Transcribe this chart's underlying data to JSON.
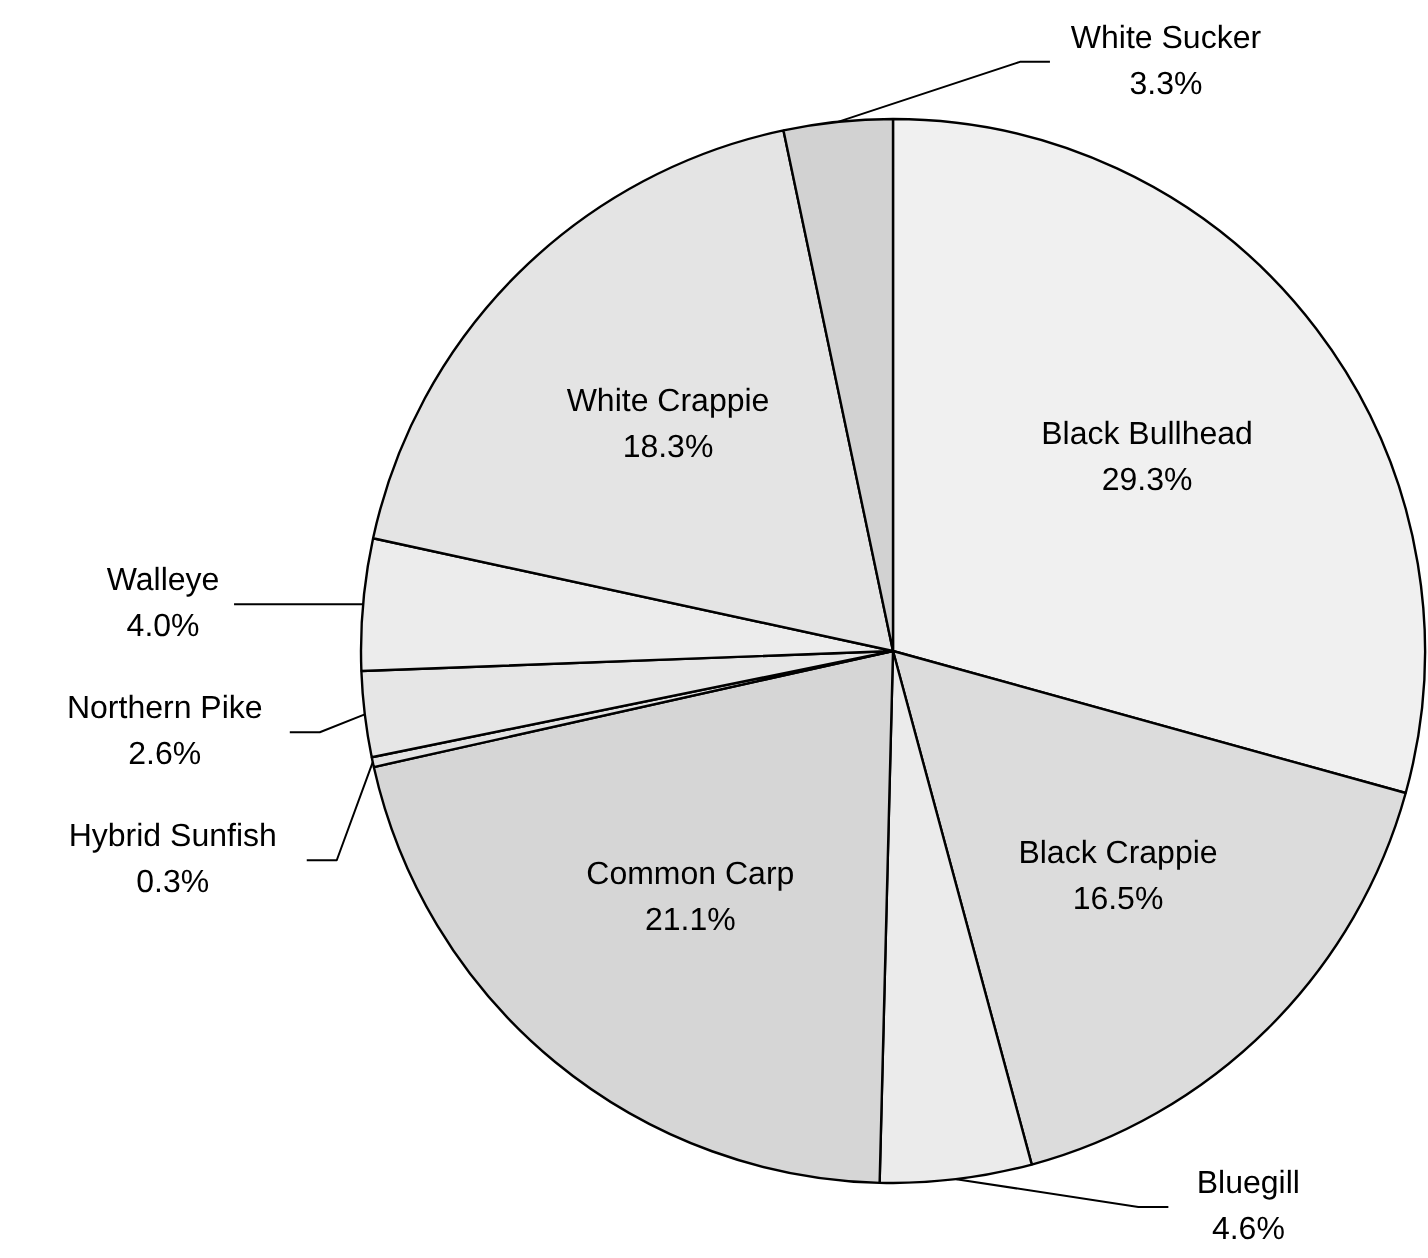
{
  "chart_data": {
    "type": "pie",
    "categories": [
      "Black Bullhead",
      "Black Crappie",
      "Bluegill",
      "Common Carp",
      "Hybrid Sunfish",
      "Northern Pike",
      "Walleye",
      "White Crappie",
      "White Sucker"
    ],
    "values": [
      29.3,
      16.5,
      4.6,
      21.1,
      0.3,
      2.6,
      4.0,
      18.3,
      3.3
    ],
    "value_labels": [
      "29.3%",
      "16.5%",
      "4.6%",
      "21.1%",
      "0.3%",
      "2.6%",
      "4.0%",
      "18.3%",
      "3.3%"
    ],
    "colors": [
      "#f0f0f0",
      "#dcdcdc",
      "#ebebeb",
      "#d6d6d6",
      "#e2e2e2",
      "#e6e6e6",
      "#ececec",
      "#e4e4e4",
      "#d2d2d2"
    ]
  }
}
